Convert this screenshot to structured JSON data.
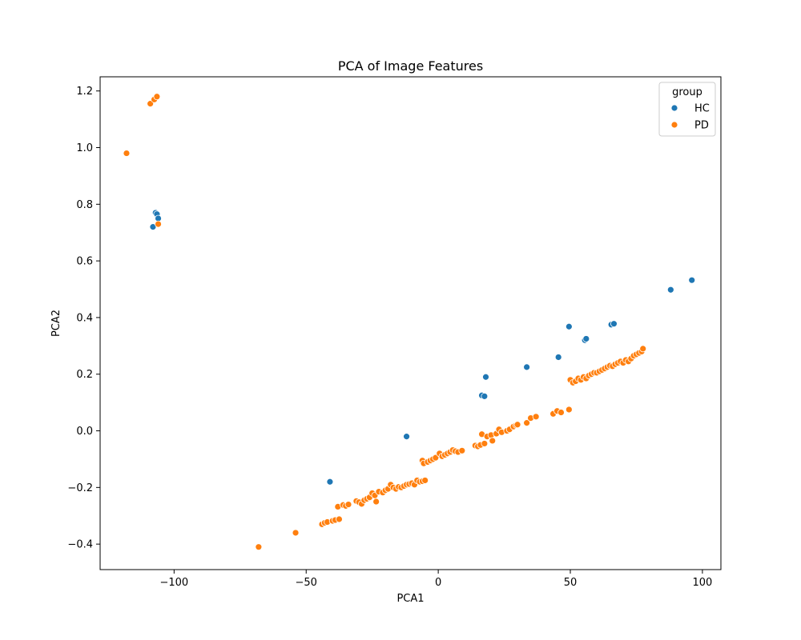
{
  "chart_data": {
    "type": "scatter",
    "title": "PCA of Image Features",
    "xlabel": "PCA1",
    "ylabel": "PCA2",
    "xlim": [
      -128,
      107
    ],
    "ylim": [
      -0.49,
      1.25
    ],
    "xticks": [
      -100,
      -50,
      0,
      50,
      100
    ],
    "xtick_labels": [
      "−100",
      "−50",
      "0",
      "50",
      "100"
    ],
    "yticks": [
      -0.4,
      -0.2,
      0.0,
      0.2,
      0.4,
      0.6,
      0.8,
      1.0,
      1.2
    ],
    "ytick_labels": [
      "−0.4",
      "−0.2",
      "0.0",
      "0.2",
      "0.4",
      "0.6",
      "0.8",
      "1.0",
      "1.2"
    ],
    "grid": false,
    "legend": {
      "title": "group",
      "placement": "top-right"
    },
    "series": [
      {
        "name": "HC",
        "color": "#1f77b4",
        "points": [
          [
            -107,
            0.77
          ],
          [
            -106.5,
            0.765
          ],
          [
            -106,
            0.75
          ],
          [
            -108,
            0.72
          ],
          [
            -41,
            -0.18
          ],
          [
            -12,
            -0.02
          ],
          [
            16.5,
            0.125
          ],
          [
            17.5,
            0.122
          ],
          [
            18,
            0.19
          ],
          [
            33.5,
            0.225
          ],
          [
            45.5,
            0.26
          ],
          [
            49.5,
            0.368
          ],
          [
            55.5,
            0.32
          ],
          [
            56,
            0.325
          ],
          [
            65.5,
            0.375
          ],
          [
            66.5,
            0.378
          ],
          [
            88,
            0.498
          ],
          [
            96,
            0.532
          ]
        ]
      },
      {
        "name": "PD",
        "color": "#ff7f0e",
        "points": [
          [
            -118,
            0.98
          ],
          [
            -109,
            1.155
          ],
          [
            -107.5,
            1.17
          ],
          [
            -106.5,
            1.18
          ],
          [
            -106,
            0.73
          ],
          [
            -68,
            -0.41
          ],
          [
            -54,
            -0.36
          ],
          [
            -44,
            -0.33
          ],
          [
            -43,
            -0.325
          ],
          [
            -42,
            -0.322
          ],
          [
            -40,
            -0.318
          ],
          [
            -39,
            -0.315
          ],
          [
            -37.5,
            -0.312
          ],
          [
            -38,
            -0.268
          ],
          [
            -36,
            -0.262
          ],
          [
            -35,
            -0.265
          ],
          [
            -34,
            -0.26
          ],
          [
            -31,
            -0.248
          ],
          [
            -30,
            -0.252
          ],
          [
            -29,
            -0.258
          ],
          [
            -28,
            -0.245
          ],
          [
            -27,
            -0.24
          ],
          [
            -26,
            -0.235
          ],
          [
            -25,
            -0.22
          ],
          [
            -24,
            -0.228
          ],
          [
            -23.5,
            -0.25
          ],
          [
            -22.5,
            -0.215
          ],
          [
            -21,
            -0.218
          ],
          [
            -20,
            -0.21
          ],
          [
            -19,
            -0.205
          ],
          [
            -18,
            -0.19
          ],
          [
            -17,
            -0.2
          ],
          [
            -16,
            -0.205
          ],
          [
            -15,
            -0.198
          ],
          [
            -14,
            -0.2
          ],
          [
            -13,
            -0.195
          ],
          [
            -12,
            -0.19
          ],
          [
            -11,
            -0.188
          ],
          [
            -10,
            -0.185
          ],
          [
            -9,
            -0.19
          ],
          [
            -8,
            -0.175
          ],
          [
            -7,
            -0.18
          ],
          [
            -6,
            -0.178
          ],
          [
            -5,
            -0.175
          ],
          [
            -6,
            -0.105
          ],
          [
            -5.5,
            -0.115
          ],
          [
            -4,
            -0.11
          ],
          [
            -3,
            -0.105
          ],
          [
            -2,
            -0.1
          ],
          [
            -1,
            -0.095
          ],
          [
            0.5,
            -0.08
          ],
          [
            1.5,
            -0.09
          ],
          [
            2.5,
            -0.085
          ],
          [
            3.5,
            -0.08
          ],
          [
            4.5,
            -0.075
          ],
          [
            5.5,
            -0.068
          ],
          [
            6.5,
            -0.072
          ],
          [
            7.5,
            -0.075
          ],
          [
            9,
            -0.07
          ],
          [
            14,
            -0.052
          ],
          [
            15,
            -0.055
          ],
          [
            16,
            -0.05
          ],
          [
            16.5,
            -0.012
          ],
          [
            17.5,
            -0.045
          ],
          [
            18.5,
            -0.02
          ],
          [
            20,
            -0.015
          ],
          [
            20.5,
            -0.035
          ],
          [
            22,
            -0.01
          ],
          [
            23,
            0.005
          ],
          [
            24,
            -0.005
          ],
          [
            26,
            0.0
          ],
          [
            27,
            0.005
          ],
          [
            28.5,
            0.015
          ],
          [
            29.5,
            0.02
          ],
          [
            30,
            0.022
          ],
          [
            33.5,
            0.028
          ],
          [
            35,
            0.045
          ],
          [
            37,
            0.05
          ],
          [
            43.5,
            0.06
          ],
          [
            45,
            0.07
          ],
          [
            46.5,
            0.065
          ],
          [
            49.5,
            0.075
          ],
          [
            50,
            0.18
          ],
          [
            51,
            0.17
          ],
          [
            52,
            0.175
          ],
          [
            53,
            0.185
          ],
          [
            54,
            0.18
          ],
          [
            55,
            0.19
          ],
          [
            56,
            0.185
          ],
          [
            57,
            0.195
          ],
          [
            58,
            0.2
          ],
          [
            59,
            0.205
          ],
          [
            60,
            0.205
          ],
          [
            61,
            0.21
          ],
          [
            62,
            0.215
          ],
          [
            63,
            0.22
          ],
          [
            64,
            0.225
          ],
          [
            65,
            0.23
          ],
          [
            66,
            0.228
          ],
          [
            67,
            0.235
          ],
          [
            68,
            0.24
          ],
          [
            69,
            0.245
          ],
          [
            70,
            0.24
          ],
          [
            71,
            0.25
          ],
          [
            72,
            0.245
          ],
          [
            73,
            0.255
          ],
          [
            74,
            0.265
          ],
          [
            75,
            0.27
          ],
          [
            76,
            0.275
          ],
          [
            77,
            0.28
          ],
          [
            77.5,
            0.29
          ]
        ]
      }
    ]
  }
}
